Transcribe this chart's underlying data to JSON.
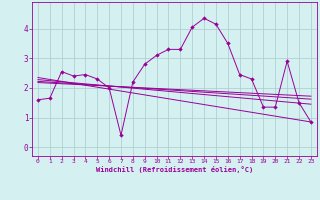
{
  "xlabel": "Windchill (Refroidissement éolien,°C)",
  "background_color": "#d4f0f0",
  "line_color": "#990099",
  "grid_color": "#aacccc",
  "xlim": [
    -0.5,
    23.5
  ],
  "ylim": [
    -0.3,
    4.9
  ],
  "xticks": [
    0,
    1,
    2,
    3,
    4,
    5,
    6,
    7,
    8,
    9,
    10,
    11,
    12,
    13,
    14,
    15,
    16,
    17,
    18,
    19,
    20,
    21,
    22,
    23
  ],
  "yticks": [
    0,
    1,
    2,
    3,
    4
  ],
  "scatter_x": [
    0,
    1,
    2,
    3,
    4,
    5,
    6,
    7,
    8,
    9,
    10,
    11,
    12,
    13,
    14,
    15,
    16,
    17,
    18,
    19,
    20,
    21,
    22,
    23
  ],
  "scatter_y": [
    1.6,
    1.65,
    2.55,
    2.4,
    2.45,
    2.3,
    2.0,
    0.4,
    2.2,
    2.8,
    3.1,
    3.3,
    3.3,
    4.05,
    4.35,
    4.15,
    3.5,
    2.45,
    2.3,
    1.35,
    1.35,
    2.9,
    1.5,
    0.85
  ],
  "reg_lines": [
    {
      "x0": 0,
      "y0": 2.35,
      "x1": 23,
      "y1": 0.85
    },
    {
      "x0": 0,
      "y0": 2.28,
      "x1": 23,
      "y1": 1.45
    },
    {
      "x0": 0,
      "y0": 2.22,
      "x1": 23,
      "y1": 1.62
    },
    {
      "x0": 0,
      "y0": 2.18,
      "x1": 23,
      "y1": 1.72
    }
  ]
}
